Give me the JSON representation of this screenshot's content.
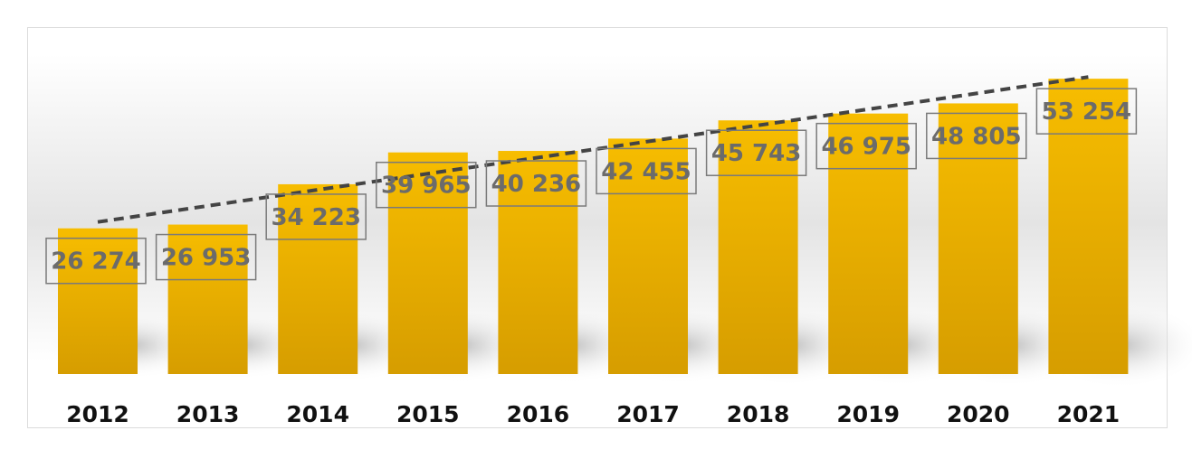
{
  "chart_data": {
    "type": "bar",
    "categories": [
      "2012",
      "2013",
      "2014",
      "2015",
      "2016",
      "2017",
      "2018",
      "2019",
      "2020",
      "2021"
    ],
    "values": [
      26274,
      26953,
      34223,
      39965,
      40236,
      42455,
      45743,
      46975,
      48805,
      53254
    ],
    "value_labels": [
      "26 274",
      "26 953",
      "34 223",
      "39 965",
      "40 236",
      "42 455",
      "45 743",
      "46 975",
      "48 805",
      "53 254"
    ],
    "title": "",
    "xlabel": "",
    "ylabel": "",
    "trendline": "linear",
    "bar_color": "#f5b800",
    "bar_color_dark": "#d99e00",
    "trend_color": "#444444",
    "label_color": "#6b6b6b",
    "grid": false,
    "legend": "none"
  }
}
